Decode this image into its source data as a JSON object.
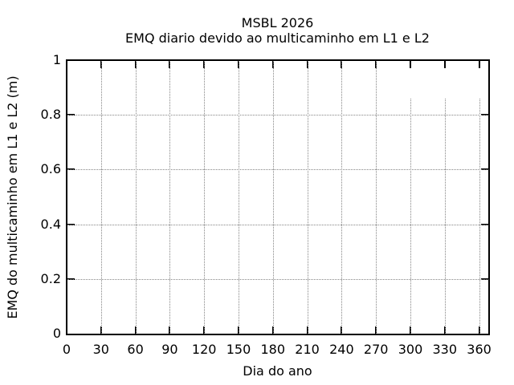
{
  "chart_data": {
    "type": "line",
    "title": "MSBL 2026",
    "subtitle": "EMQ diario devido ao multicaminho em L1 e L2",
    "xlabel": "Dia do ano",
    "ylabel": "EMQ do multicaminho em L1 e L2 (m)",
    "xlim": [
      0,
      368
    ],
    "ylim": [
      0,
      1
    ],
    "x_ticks": {
      "values": [
        0,
        30,
        60,
        90,
        120,
        150,
        180,
        210,
        240,
        270,
        300,
        330,
        360
      ],
      "labels": [
        "0",
        "30",
        "60",
        "90",
        "120",
        "150",
        "180",
        "210",
        "240",
        "270",
        "300",
        "330",
        "360"
      ]
    },
    "y_ticks": {
      "values": [
        0,
        0.2,
        0.4,
        0.6,
        0.8,
        1
      ],
      "labels": [
        "0",
        "0.2",
        "0.4",
        "0.6",
        "0.8",
        "1"
      ]
    },
    "grid": {
      "show": true,
      "style": "dotted",
      "color": "#858585",
      "vertical_truncated": {
        "tick_values": [
          300,
          330,
          360
        ],
        "start_y": 0.86
      }
    },
    "legend": "none",
    "series": [],
    "frame_color": "#000000",
    "background": "#ffffff",
    "text_color": "#000000"
  }
}
